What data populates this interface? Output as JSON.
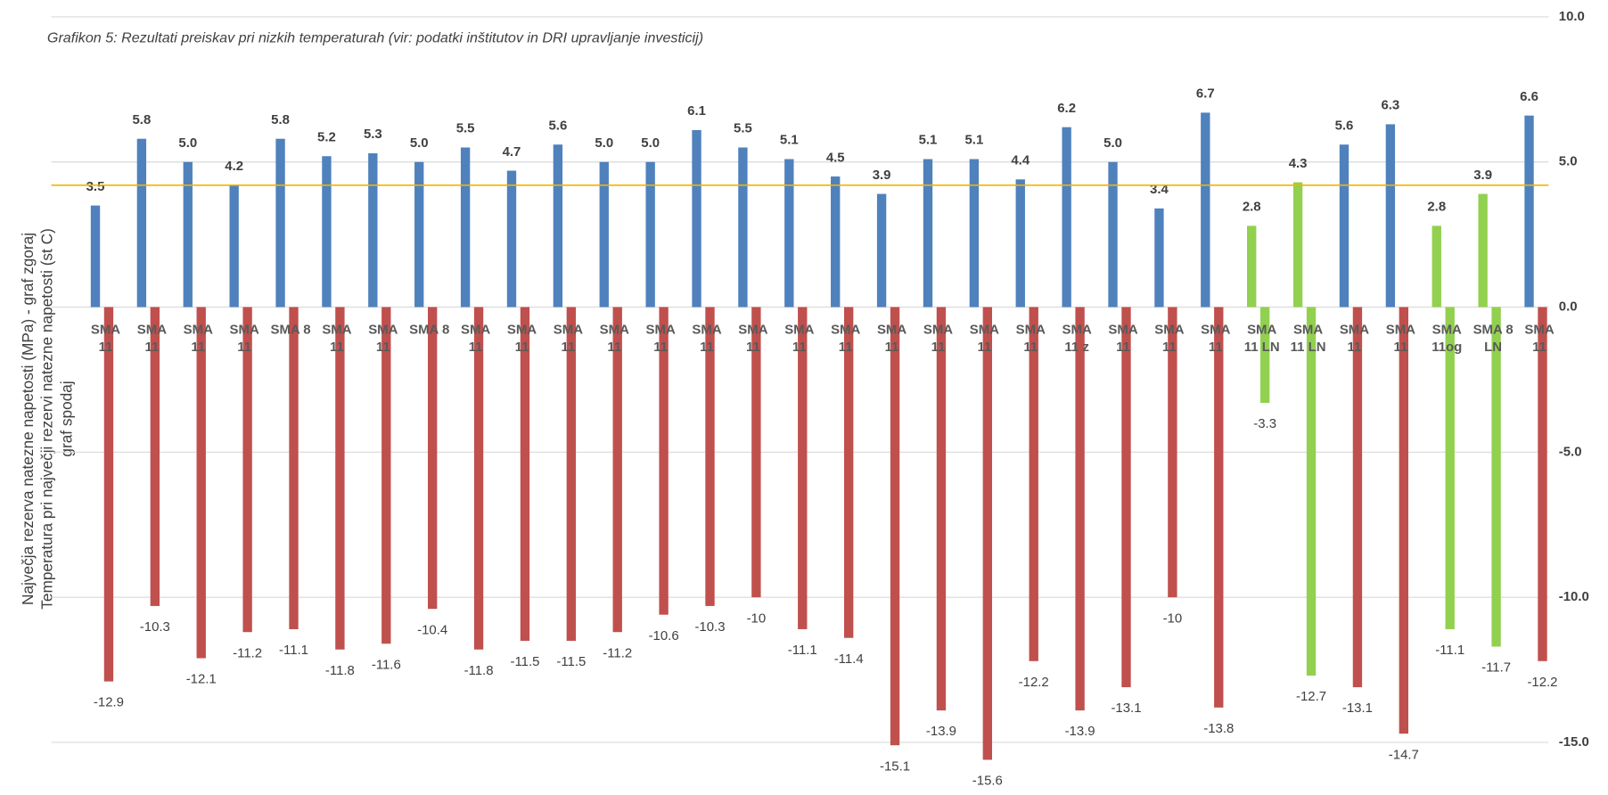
{
  "chart_data": {
    "type": "bar",
    "title": "Grafikon 5: Rezultati preiskav pri nizkih temperaturah (vir: podatki inštitutov in DRI upravljanje investicij)",
    "y_label": [
      "Največja rezerva natezne napetosti (MPa) - graf zgoraj",
      "Temperatura pri največji rezervi natezne napetosti  (st C)",
      "graf spodaj"
    ],
    "categories": [
      "SMA 11",
      "SMA 11",
      "SMA 11",
      "SMA 11",
      "SMA 8",
      "SMA 11",
      "SMA 11",
      "SMA 8",
      "SMA 11",
      "SMA 11",
      "SMA 11",
      "SMA 11",
      "SMA 11",
      "SMA 11",
      "SMA 11",
      "SMA 11",
      "SMA 11",
      "SMA 11",
      "SMA 11",
      "SMA 11",
      "SMA 11",
      "SMA 11 z",
      "SMA 11",
      "SMA 11",
      "SMA 11",
      "SMA 11 LN",
      "SMA 11 LN",
      "SMA 11",
      "SMA 11",
      "SMA 11og",
      "SMA 8 LN",
      "SMA 11"
    ],
    "series": [
      {
        "color": "#4f81bd",
        "colors": [
          "#4f81bd",
          "#4f81bd",
          "#4f81bd",
          "#4f81bd",
          "#4f81bd",
          "#4f81bd",
          "#4f81bd",
          "#4f81bd",
          "#4f81bd",
          "#4f81bd",
          "#4f81bd",
          "#4f81bd",
          "#4f81bd",
          "#4f81bd",
          "#4f81bd",
          "#4f81bd",
          "#4f81bd",
          "#4f81bd",
          "#4f81bd",
          "#4f81bd",
          "#4f81bd",
          "#4f81bd",
          "#4f81bd",
          "#4f81bd",
          "#4f81bd",
          "#92d050",
          "#92d050",
          "#4f81bd",
          "#4f81bd",
          "#92d050",
          "#92d050",
          "#4f81bd"
        ],
        "values": [
          3.5,
          5.8,
          5.0,
          4.2,
          5.8,
          5.2,
          5.3,
          5.0,
          5.5,
          4.7,
          5.6,
          5.0,
          5.0,
          6.1,
          5.5,
          5.1,
          4.5,
          3.9,
          5.1,
          5.1,
          4.4,
          6.2,
          5.0,
          3.4,
          6.7,
          2.8,
          4.3,
          5.6,
          6.3,
          2.8,
          3.9,
          6.6
        ],
        "value_labels": [
          "3.5",
          "5.8",
          "5.0",
          "4.2",
          "5.8",
          "5.2",
          "5.3",
          "5.0",
          "5.5",
          "4.7",
          "5.6",
          "5.0",
          "5.0",
          "6.1",
          "5.5",
          "5.1",
          "4.5",
          "3.9",
          "5.1",
          "5.1",
          "4.4",
          "6.2",
          "5.0",
          "3.4",
          "6.7",
          "2.8",
          "4.3",
          "5.6",
          "6.3",
          "2.8",
          "3.9",
          "6.6"
        ]
      },
      {
        "color": "#c0504d",
        "colors": [
          "#c0504d",
          "#c0504d",
          "#c0504d",
          "#c0504d",
          "#c0504d",
          "#c0504d",
          "#c0504d",
          "#c0504d",
          "#c0504d",
          "#c0504d",
          "#c0504d",
          "#c0504d",
          "#c0504d",
          "#c0504d",
          "#c0504d",
          "#c0504d",
          "#c0504d",
          "#c0504d",
          "#c0504d",
          "#c0504d",
          "#c0504d",
          "#c0504d",
          "#c0504d",
          "#c0504d",
          "#c0504d",
          "#92d050",
          "#92d050",
          "#c0504d",
          "#c0504d",
          "#92d050",
          "#92d050",
          "#c0504d"
        ],
        "values": [
          -12.9,
          -10.3,
          -12.1,
          -11.2,
          -11.1,
          -11.8,
          -11.6,
          -10.4,
          -11.8,
          -11.5,
          -11.5,
          -11.2,
          -10.6,
          -10.3,
          -10,
          -11.1,
          -11.4,
          -15.1,
          -13.9,
          -15.6,
          -12.2,
          -13.9,
          -13.1,
          -10,
          -13.8,
          -3.3,
          -12.7,
          -13.1,
          -14.7,
          -11.1,
          -11.7,
          -12.2
        ]
      }
    ],
    "reference_line": 4.2,
    "reference_color": "#f0b400",
    "ylim": [
      -16,
      10
    ],
    "yticks": [
      {
        "value": 10,
        "label": "10.0"
      },
      {
        "value": 5,
        "label": "5.0"
      },
      {
        "value": 0,
        "label": "0.0"
      },
      {
        "value": -5,
        "label": "-5.0"
      },
      {
        "value": -10,
        "label": "-10.0"
      },
      {
        "value": -15,
        "label": "-15.0"
      }
    ],
    "grid": true
  }
}
